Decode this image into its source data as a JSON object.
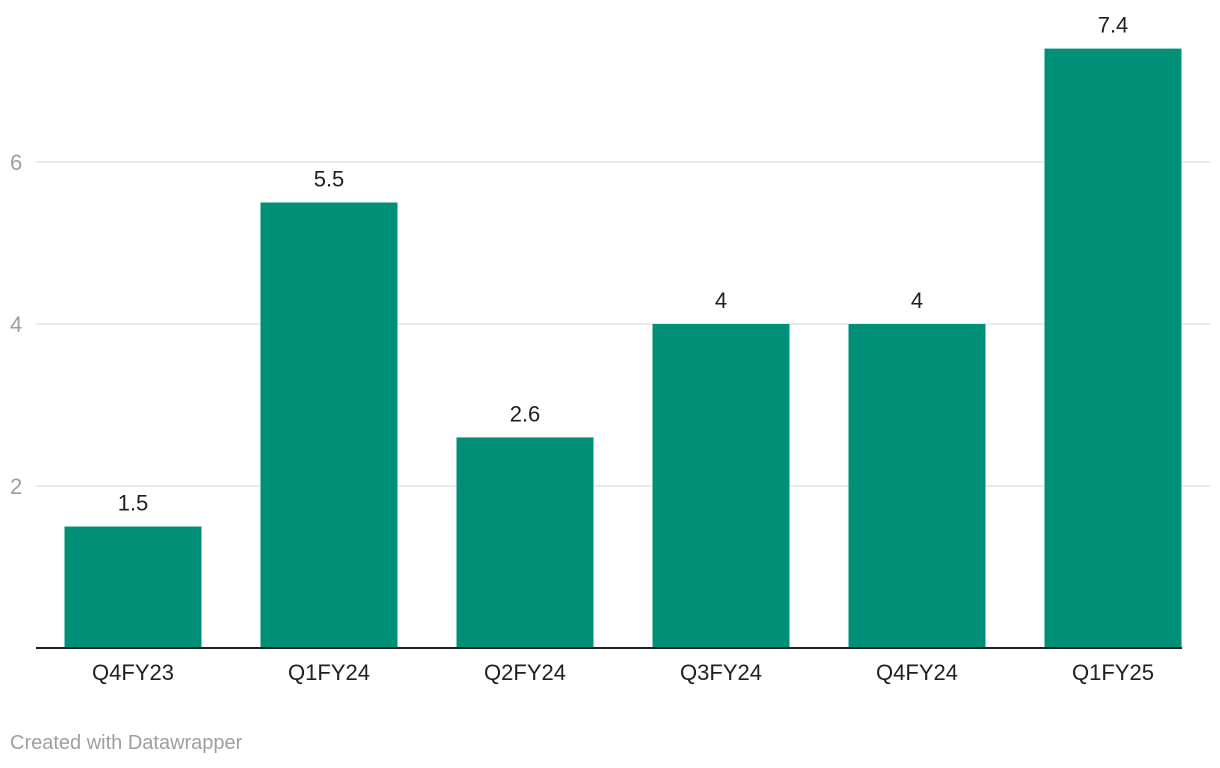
{
  "chart_data": {
    "type": "bar",
    "categories": [
      "Q4FY23",
      "Q1FY24",
      "Q2FY24",
      "Q3FY24",
      "Q4FY24",
      "Q1FY25"
    ],
    "values": [
      1.5,
      5.5,
      2.6,
      4,
      4,
      7.4
    ],
    "value_labels": [
      "1.5",
      "5.5",
      "2.6",
      "4",
      "4",
      "7.4"
    ],
    "y_ticks": [
      2,
      4,
      6
    ],
    "ylim": [
      0,
      8
    ],
    "grid": true,
    "bar_color": "#009077",
    "title": "",
    "xlabel": "",
    "ylabel": ""
  },
  "footer": {
    "credit": "Created with Datawrapper"
  }
}
